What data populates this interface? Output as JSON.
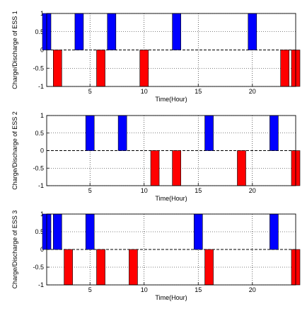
{
  "chart_data": [
    {
      "type": "bar",
      "ylabel": "Charge/Discharge of ESS 1",
      "xlabel": "Time(Hour)",
      "xlim": [
        1,
        24
      ],
      "ylim": [
        -1,
        1
      ],
      "xticks": [
        5,
        10,
        15,
        20
      ],
      "yticks": [
        1,
        0.5,
        0,
        -0.5,
        -1
      ],
      "ytick_labels": [
        "1",
        "0.5",
        "0",
        "-0.5",
        "-1"
      ],
      "grid": true,
      "hours": [
        1,
        2,
        3,
        4,
        5,
        6,
        7,
        8,
        9,
        10,
        11,
        12,
        13,
        14,
        15,
        16,
        17,
        18,
        19,
        20,
        21,
        22,
        23,
        24
      ],
      "values": [
        1,
        -1,
        0,
        1,
        0,
        -1,
        1,
        0,
        0,
        -1,
        0,
        0,
        1,
        0,
        0,
        0,
        0,
        0,
        0,
        1,
        0,
        0,
        -1,
        -1
      ]
    },
    {
      "type": "bar",
      "ylabel": "Charge/Discharge of ESS 2",
      "xlabel": "Time(Hour)",
      "xlim": [
        1,
        24
      ],
      "ylim": [
        -1,
        1
      ],
      "xticks": [
        5,
        10,
        15,
        20
      ],
      "yticks": [
        1,
        0.5,
        0,
        -0.5,
        -1
      ],
      "ytick_labels": [
        "1",
        "0.5",
        "0",
        "-0.5",
        "-1"
      ],
      "grid": true,
      "hours": [
        1,
        2,
        3,
        4,
        5,
        6,
        7,
        8,
        9,
        10,
        11,
        12,
        13,
        14,
        15,
        16,
        17,
        18,
        19,
        20,
        21,
        22,
        23,
        24
      ],
      "values": [
        0,
        0,
        0,
        0,
        1,
        0,
        0,
        1,
        0,
        0,
        -1,
        0,
        -1,
        0,
        0,
        1,
        0,
        0,
        -1,
        0,
        0,
        1,
        0,
        -1
      ]
    },
    {
      "type": "bar",
      "ylabel": "Charge/Discharge of ESS 3",
      "xlabel": "Time(Hour)",
      "xlim": [
        1,
        24
      ],
      "ylim": [
        -1,
        1
      ],
      "xticks": [
        5,
        10,
        15,
        20
      ],
      "yticks": [
        1,
        0.5,
        0,
        -0.5,
        -1
      ],
      "ytick_labels": [
        "1",
        "0.5",
        "0",
        "-0.5",
        "-1"
      ],
      "grid": true,
      "hours": [
        1,
        2,
        3,
        4,
        5,
        6,
        7,
        8,
        9,
        10,
        11,
        12,
        13,
        14,
        15,
        16,
        17,
        18,
        19,
        20,
        21,
        22,
        23,
        24
      ],
      "values": [
        1,
        1,
        -1,
        0,
        1,
        -1,
        0,
        0,
        -1,
        0,
        0,
        0,
        0,
        0,
        1,
        -1,
        0,
        0,
        0,
        0,
        0,
        1,
        0,
        -1
      ]
    }
  ],
  "colors": {
    "charge": "#0000ff",
    "discharge": "#ff0000",
    "grid": "#000000",
    "axis": "#000000"
  }
}
